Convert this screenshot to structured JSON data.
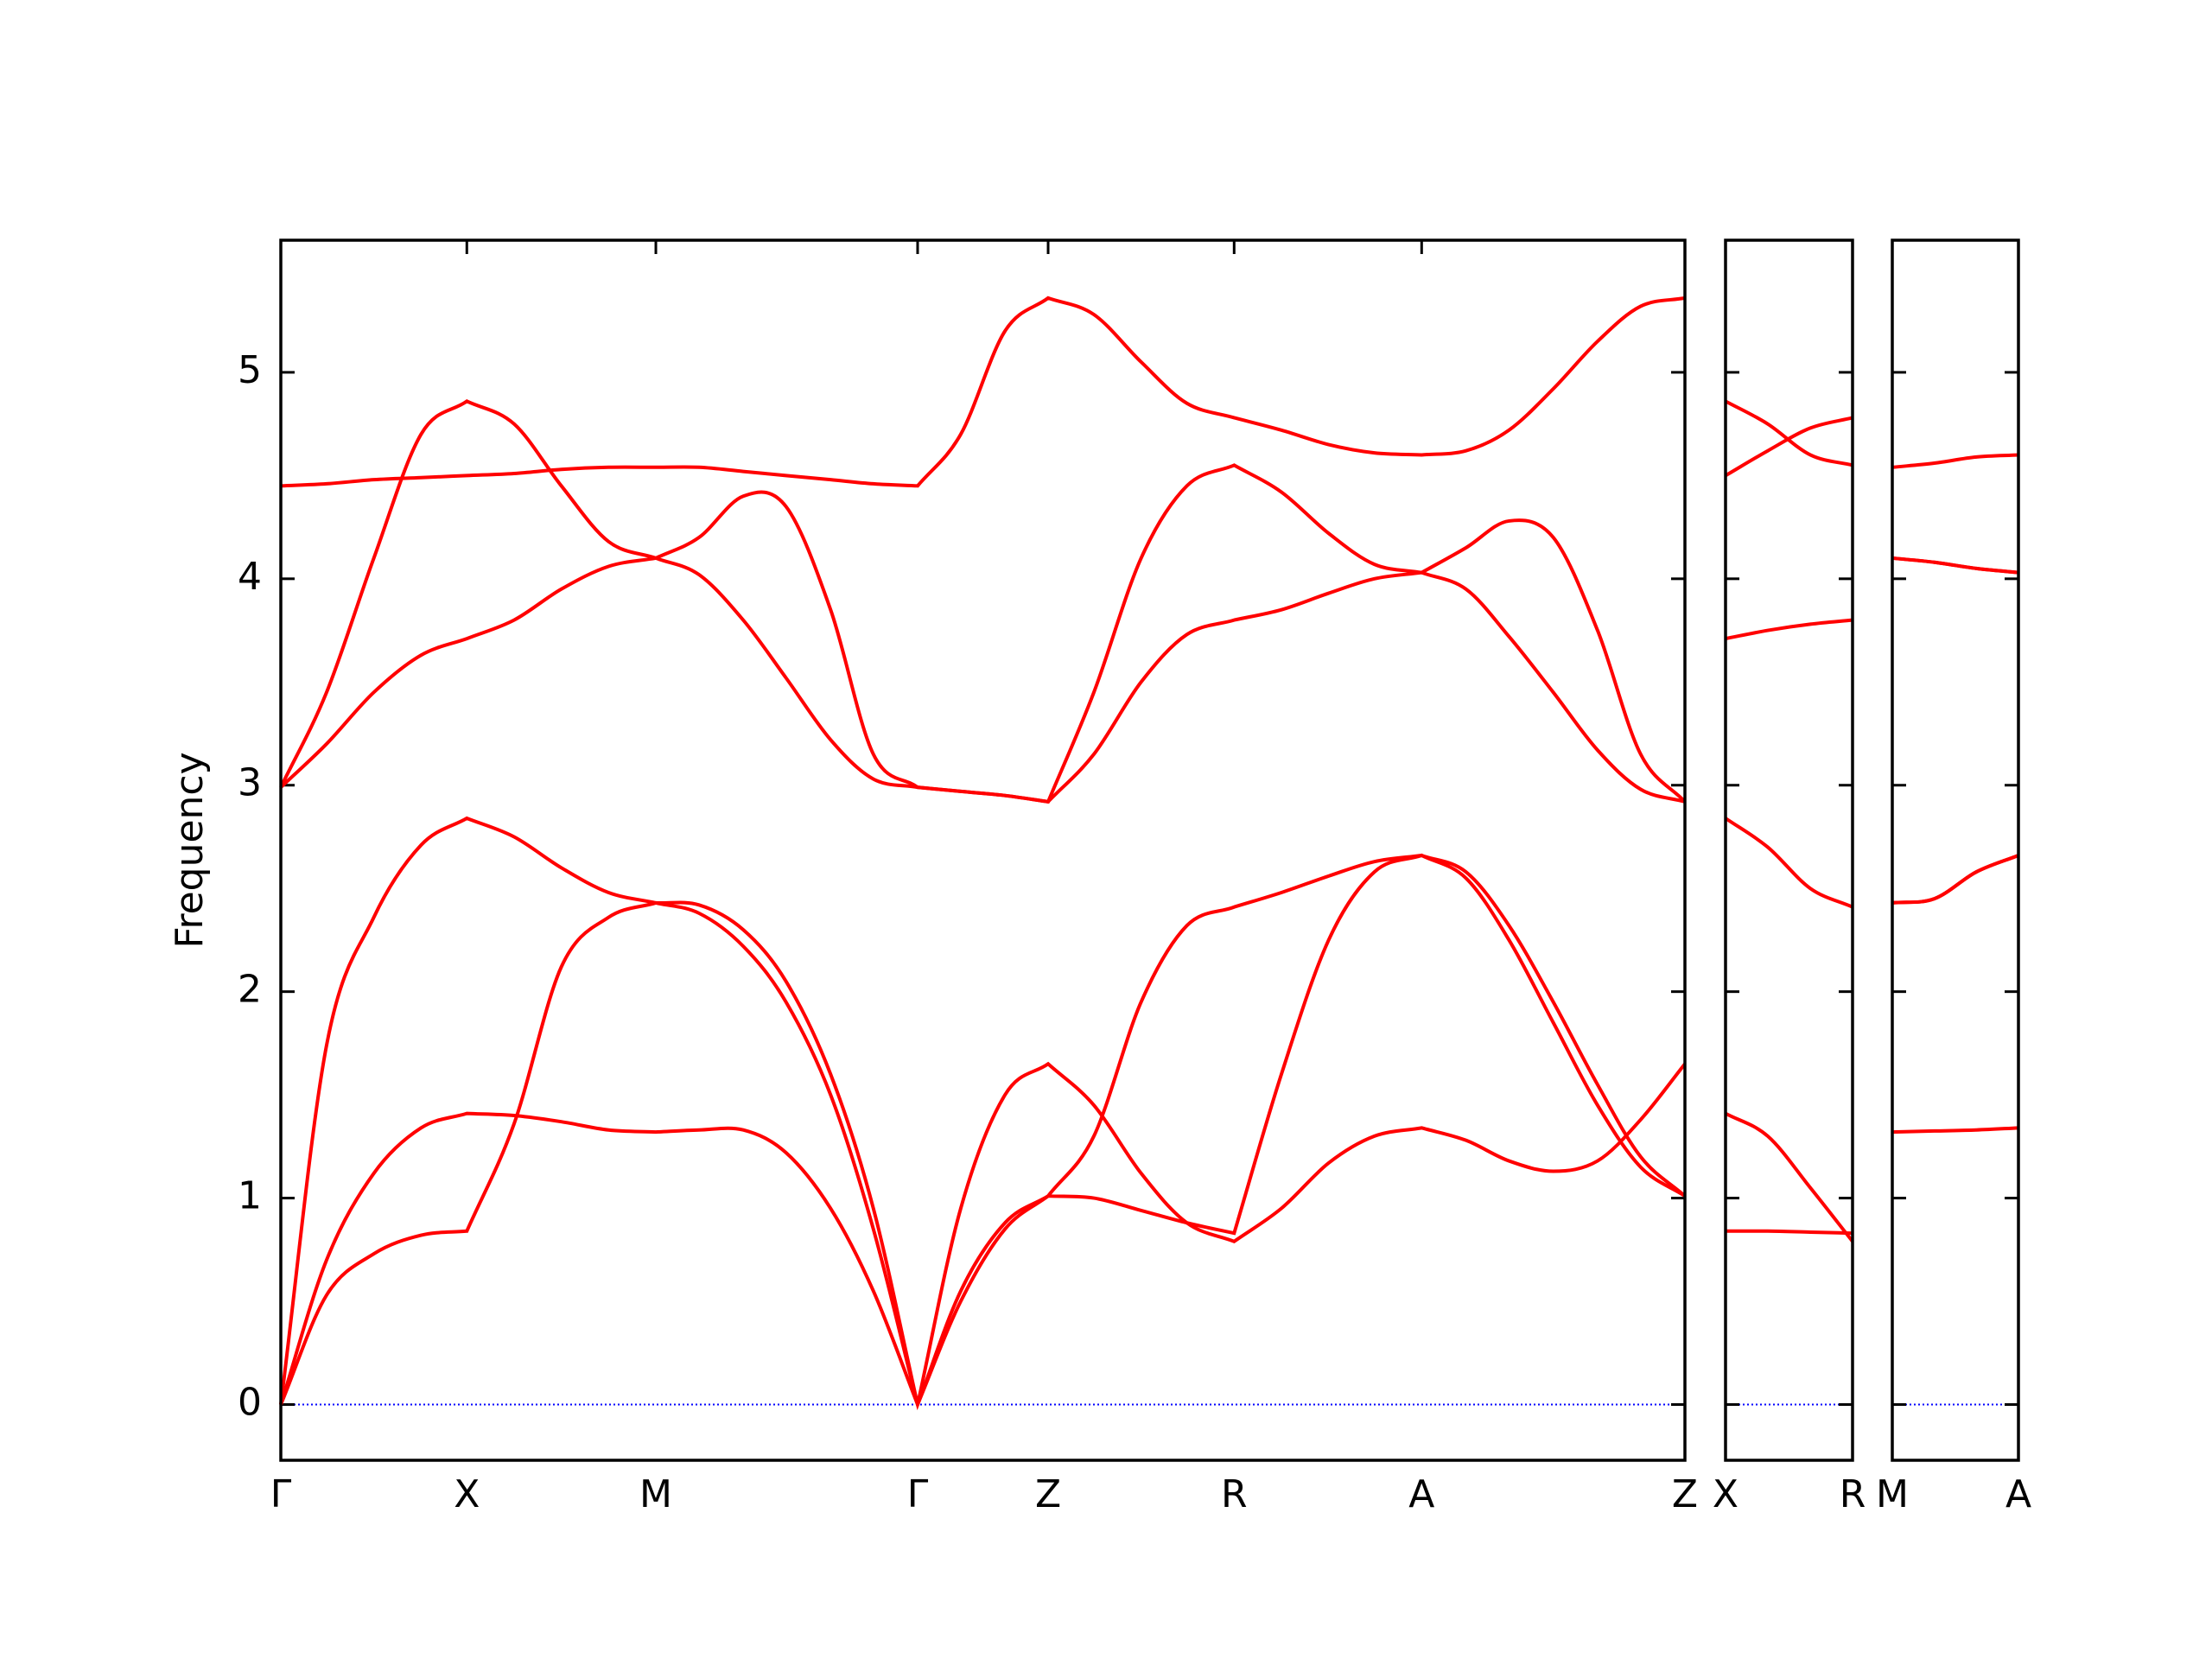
{
  "chart_data": [
    {
      "type": "line",
      "y_label": "Frequency",
      "color": "#ff0000",
      "hline": 0,
      "hline_color": "#0000ff",
      "x": [
        0,
        0.122,
        0.248,
        0.374,
        0.496,
        0.622,
        0.748,
        0.874,
        1.0,
        1.115,
        1.233,
        1.347,
        1.466,
        1.58,
        1.698,
        1.813,
        1.931,
        2.046,
        2.168,
        2.294,
        2.416,
        2.542,
        2.668,
        2.794,
        2.916,
        3.042,
        3.16,
        3.275,
        3.393,
        3.511,
        3.626,
        3.744
      ],
      "series": [
        {
          "values": [
            0,
            0.53,
            0.73,
            0.82,
            0.84,
            1.36,
            2.12,
            2.36,
            2.43,
            2.42,
            2.3,
            2.05,
            1.6,
            0.95,
            0,
            0.95,
            1.5,
            1.65,
            1.45,
            1.12,
            0.88,
            0.79,
            0.95,
            1.17,
            1.3,
            1.34,
            1.28,
            1.18,
            1.13,
            1.18,
            1.38,
            1.65
          ]
        },
        {
          "values": [
            0,
            0.7,
            1.12,
            1.34,
            1.41,
            1.4,
            1.37,
            1.33,
            1.32,
            1.33,
            1.33,
            1.22,
            0.95,
            0.55,
            0,
            0.5,
            0.85,
            1.01,
            1.0,
            0.94,
            0.88,
            0.83,
            1.6,
            2.25,
            2.58,
            2.66,
            2.55,
            2.25,
            1.85,
            1.45,
            1.15,
            1.01
          ]
        },
        {
          "values": [
            0,
            1.74,
            2.36,
            2.71,
            2.84,
            2.75,
            2.6,
            2.48,
            2.43,
            2.38,
            2.22,
            1.95,
            1.5,
            0.85,
            0,
            0.55,
            0.88,
            1.01,
            1.3,
            1.95,
            2.32,
            2.41,
            2.48,
            2.56,
            2.63,
            2.66,
            2.58,
            2.32,
            1.95,
            1.55,
            1.2,
            1.01
          ]
        },
        {
          "values": [
            2.99,
            3.2,
            3.45,
            3.63,
            3.71,
            3.8,
            3.95,
            4.06,
            4.1,
            4.02,
            3.8,
            3.52,
            3.22,
            3.03,
            2.99,
            2.97,
            2.95,
            2.92,
            3.15,
            3.5,
            3.73,
            3.8,
            3.85,
            3.93,
            4.0,
            4.03,
            3.95,
            3.72,
            3.45,
            3.17,
            2.98,
            2.92
          ]
        },
        {
          "values": [
            2.99,
            3.45,
            4.1,
            4.7,
            4.86,
            4.75,
            4.45,
            4.18,
            4.1,
            4.2,
            4.4,
            4.35,
            3.85,
            3.15,
            2.99,
            2.97,
            2.95,
            2.92,
            3.45,
            4.1,
            4.45,
            4.55,
            4.42,
            4.22,
            4.07,
            4.03,
            4.15,
            4.28,
            4.2,
            3.75,
            3.15,
            2.92
          ]
        },
        {
          "values": [
            4.45,
            4.46,
            4.48,
            4.49,
            4.5,
            4.51,
            4.53,
            4.54,
            4.54,
            4.54,
            4.52,
            4.5,
            4.48,
            4.46,
            4.45,
            4.7,
            5.2,
            5.36,
            5.28,
            5.05,
            4.85,
            4.78,
            4.72,
            4.65,
            4.61,
            4.6,
            4.62,
            4.72,
            4.92,
            5.15,
            5.32,
            5.36
          ]
        }
      ],
      "xlim": [
        0,
        3.744
      ],
      "ylim": [
        -0.27,
        5.64
      ],
      "yticks": [
        0,
        1,
        2,
        3,
        4,
        5
      ],
      "ytick_labels": true,
      "xticks": [
        {
          "value": 0,
          "label": "Γ"
        },
        {
          "value": 0.496,
          "label": "X"
        },
        {
          "value": 1.0,
          "label": "M"
        },
        {
          "value": 1.698,
          "label": "Γ"
        },
        {
          "value": 2.046,
          "label": "Z"
        },
        {
          "value": 2.542,
          "label": "R"
        },
        {
          "value": 3.042,
          "label": "A"
        },
        {
          "value": 3.744,
          "label": "Z"
        }
      ]
    },
    {
      "type": "line",
      "color": "#ff0000",
      "hline": 0,
      "hline_color": "#0000ff",
      "x": [
        0,
        0.113,
        0.227,
        0.34
      ],
      "series": [
        {
          "values": [
            0.84,
            0.84,
            0.835,
            0.83
          ]
        },
        {
          "values": [
            1.41,
            1.3,
            1.05,
            0.79
          ]
        },
        {
          "values": [
            2.84,
            2.7,
            2.5,
            2.41
          ]
        },
        {
          "values": [
            3.71,
            3.75,
            3.78,
            3.8
          ]
        },
        {
          "values": [
            4.5,
            4.62,
            4.73,
            4.78
          ]
        },
        {
          "values": [
            4.86,
            4.75,
            4.6,
            4.55
          ]
        }
      ],
      "xlim": [
        0,
        0.34
      ],
      "ylim": [
        -0.27,
        5.64
      ],
      "yticks": [
        0,
        1,
        2,
        3,
        4,
        5
      ],
      "ytick_labels": false,
      "xticks": [
        {
          "value": 0,
          "label": "X"
        },
        {
          "value": 0.34,
          "label": "R"
        }
      ]
    },
    {
      "type": "line",
      "color": "#ff0000",
      "hline": 0,
      "hline_color": "#0000ff",
      "x": [
        0,
        0.112,
        0.224,
        0.336
      ],
      "series": [
        {
          "values": [
            1.32,
            1.325,
            1.33,
            1.34
          ]
        },
        {
          "values": [
            2.43,
            2.45,
            2.58,
            2.66
          ]
        },
        {
          "values": [
            2.43,
            2.45,
            2.58,
            2.66
          ]
        },
        {
          "values": [
            4.1,
            4.08,
            4.05,
            4.03
          ]
        },
        {
          "values": [
            4.1,
            4.08,
            4.05,
            4.03
          ]
        },
        {
          "values": [
            4.54,
            4.56,
            4.59,
            4.6
          ]
        }
      ],
      "xlim": [
        0,
        0.336
      ],
      "ylim": [
        -0.27,
        5.64
      ],
      "yticks": [
        0,
        1,
        2,
        3,
        4,
        5
      ],
      "ytick_labels": false,
      "xticks": [
        {
          "value": 0,
          "label": "M"
        },
        {
          "value": 0.336,
          "label": "A"
        }
      ]
    }
  ]
}
